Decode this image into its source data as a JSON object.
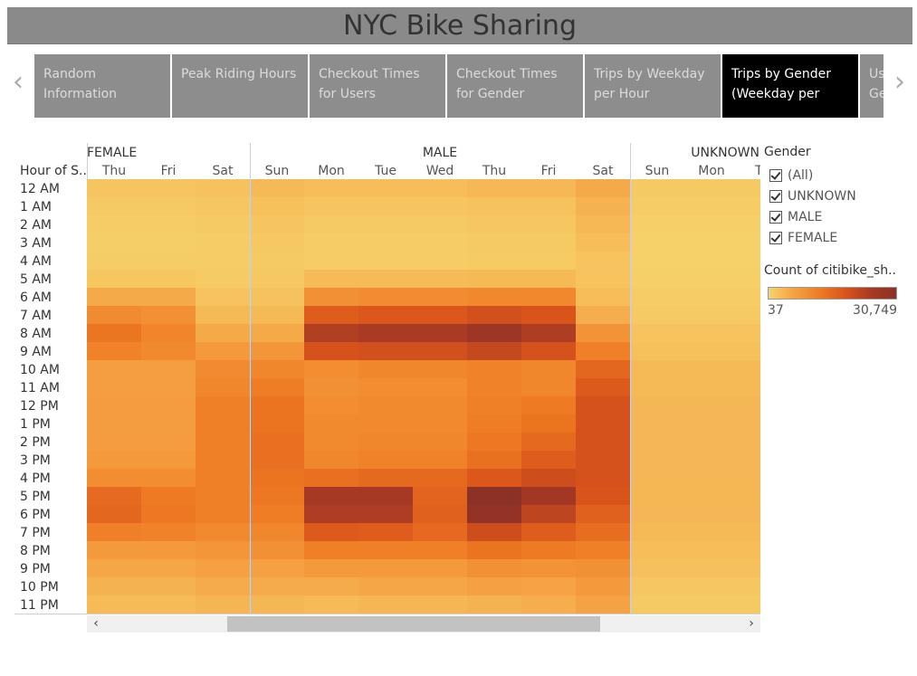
{
  "header": {
    "title": "NYC Bike Sharing"
  },
  "story_nav": {
    "prev_glyph": "‹",
    "next_glyph": "›",
    "tabs": [
      {
        "label_line1": "Random",
        "label_line2": "Information",
        "active": false
      },
      {
        "label_line1": "Peak Riding Hours",
        "label_line2": "",
        "active": false
      },
      {
        "label_line1": "Checkout Times",
        "label_line2": "for Users",
        "active": false
      },
      {
        "label_line1": "Checkout Times",
        "label_line2": "for Gender",
        "active": false
      },
      {
        "label_line1": "Trips by Weekday",
        "label_line2": "per Hour",
        "active": false
      },
      {
        "label_line1": "Trips by Gender",
        "label_line2": "(Weekday per",
        "active": true
      },
      {
        "label_line1": "Us",
        "label_line2": "Ge",
        "active": false
      }
    ]
  },
  "legend": {
    "filter_title": "Gender",
    "filter_items": [
      "(All)",
      "UNKNOWN",
      "MALE",
      "FEMALE"
    ],
    "color_title": "Count of citibike_sh..",
    "color_min": "37",
    "color_max": "30,749",
    "ramp_colors": [
      "#f6d36a",
      "#f5a244",
      "#ef7b23",
      "#d9541b",
      "#a83a24",
      "#8c3125"
    ]
  },
  "scrollbar": {
    "left_glyph": "‹",
    "right_glyph": "›"
  },
  "chart_data": {
    "type": "heatmap",
    "row_header": "Hour of S..",
    "rows": [
      "12 AM",
      "1 AM",
      "2 AM",
      "3 AM",
      "4 AM",
      "5 AM",
      "6 AM",
      "7 AM",
      "8 AM",
      "9 AM",
      "10 AM",
      "11 AM",
      "12 PM",
      "1 PM",
      "2 PM",
      "3 PM",
      "4 PM",
      "5 PM",
      "6 PM",
      "7 PM",
      "8 PM",
      "9 PM",
      "10 PM",
      "11 PM"
    ],
    "groups": [
      {
        "name": "FEMALE",
        "columns": [
          "Thu",
          "Fri",
          "Sat"
        ]
      },
      {
        "name": "MALE",
        "columns": [
          "Sun",
          "Mon",
          "Tue",
          "Wed",
          "Thu",
          "Fri",
          "Sat"
        ]
      },
      {
        "name": "UNKNOWN",
        "columns": [
          "Sun",
          "Mon",
          "Tue"
        ]
      }
    ],
    "value_range": [
      37,
      30749
    ],
    "values": [
      [
        1800,
        1800,
        2200,
        3200,
        2800,
        2800,
        2800,
        3400,
        3400,
        5200,
        1200,
        1200,
        1200
      ],
      [
        1300,
        1300,
        1600,
        2400,
        1800,
        1800,
        1800,
        2200,
        2200,
        4200,
        800,
        800,
        800
      ],
      [
        900,
        900,
        1200,
        1800,
        1200,
        1200,
        1200,
        1500,
        1500,
        3400,
        500,
        500,
        500
      ],
      [
        700,
        700,
        900,
        1400,
        900,
        900,
        900,
        1200,
        1200,
        2800,
        400,
        400,
        400
      ],
      [
        800,
        800,
        800,
        1200,
        900,
        900,
        900,
        1100,
        1100,
        2000,
        400,
        400,
        400
      ],
      [
        1600,
        1600,
        1000,
        1400,
        3000,
        3000,
        3000,
        3200,
        3200,
        2000,
        500,
        500,
        500
      ],
      [
        5200,
        5200,
        2000,
        2200,
        9000,
        9600,
        9600,
        10200,
        10200,
        2800,
        900,
        900,
        900
      ],
      [
        9800,
        9000,
        3200,
        3200,
        17000,
        18000,
        18000,
        19500,
        18500,
        4800,
        1300,
        1300,
        1300
      ],
      [
        13200,
        10800,
        5200,
        5200,
        23500,
        24500,
        24500,
        27000,
        24000,
        8500,
        2000,
        2000,
        2000
      ],
      [
        11200,
        10000,
        7500,
        8000,
        19000,
        19500,
        19500,
        21000,
        19000,
        11500,
        2400,
        2400,
        2400
      ],
      [
        6800,
        6800,
        9800,
        10500,
        9500,
        10500,
        10500,
        11000,
        10500,
        15500,
        3200,
        3200,
        3200
      ],
      [
        6800,
        6800,
        10500,
        12000,
        9000,
        9500,
        9500,
        11000,
        10500,
        17500,
        3300,
        3300,
        3300
      ],
      [
        7200,
        7200,
        11500,
        13500,
        9500,
        10000,
        10000,
        11500,
        12500,
        19000,
        3500,
        3500,
        3500
      ],
      [
        7000,
        7000,
        11500,
        13500,
        10000,
        10000,
        10000,
        12000,
        13500,
        19000,
        3500,
        3500,
        3500
      ],
      [
        7200,
        7200,
        11500,
        14000,
        10000,
        10500,
        10500,
        13000,
        15000,
        19000,
        3500,
        3500,
        3500
      ],
      [
        7500,
        7500,
        11500,
        14000,
        10500,
        11000,
        11000,
        14000,
        17000,
        19000,
        3500,
        3500,
        3500
      ],
      [
        9500,
        9500,
        11500,
        13500,
        14000,
        15000,
        15000,
        18000,
        20000,
        19000,
        3500,
        3500,
        3500
      ],
      [
        14800,
        12500,
        11500,
        13000,
        25000,
        25000,
        16000,
        30749,
        26000,
        18500,
        3600,
        3600,
        3600
      ],
      [
        15500,
        13000,
        11500,
        12000,
        24000,
        24000,
        16500,
        29500,
        22000,
        16500,
        3500,
        3500,
        3500
      ],
      [
        11500,
        11000,
        10000,
        10500,
        17500,
        17000,
        15000,
        20000,
        17000,
        14500,
        3200,
        3200,
        3200
      ],
      [
        7500,
        7500,
        8000,
        9000,
        11500,
        11500,
        11500,
        13500,
        12500,
        11500,
        2800,
        2800,
        2800
      ],
      [
        5500,
        5500,
        6500,
        6500,
        7500,
        7500,
        7500,
        9000,
        8500,
        9000,
        2300,
        2300,
        2300
      ],
      [
        4200,
        4200,
        5000,
        5000,
        5000,
        5500,
        5500,
        6500,
        6000,
        7500,
        1700,
        1700,
        1700
      ],
      [
        3000,
        3000,
        3800,
        3500,
        3000,
        3500,
        3500,
        4200,
        4800,
        6200,
        1200,
        1200,
        1200
      ]
    ]
  }
}
